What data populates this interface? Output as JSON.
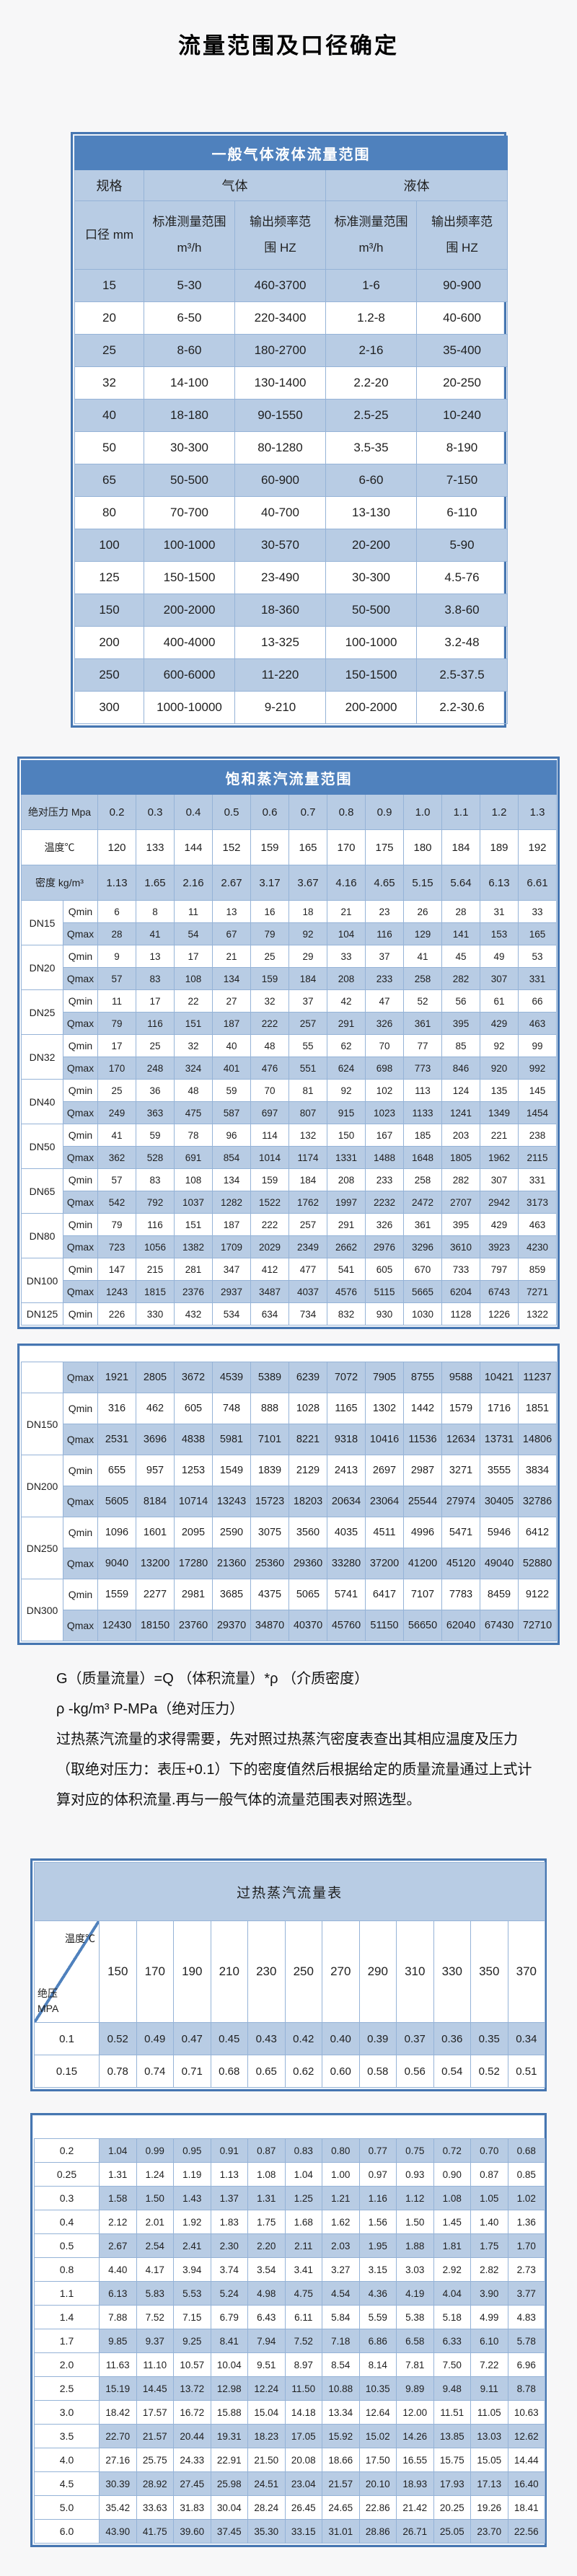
{
  "page": {
    "title": "流量范围及口径确定"
  },
  "colors": {
    "accent": "#4f81bd",
    "stripe": "#b8cce4",
    "frame": "#4676b1"
  },
  "table1": {
    "title": "一般气体液体流量范围",
    "group_headers": {
      "spec": "规格",
      "gas": "气体",
      "liquid": "液体"
    },
    "columns": [
      "口径 mm",
      "标准测量范围\nm³/h",
      "输出频率范\n围 HZ",
      "标准测量范围\nm³/h",
      "输出频率范\n围 HZ"
    ],
    "rows": [
      [
        "15",
        "5-30",
        "460-3700",
        "1-6",
        "90-900"
      ],
      [
        "20",
        "6-50",
        "220-3400",
        "1.2-8",
        "40-600"
      ],
      [
        "25",
        "8-60",
        "180-2700",
        "2-16",
        "35-400"
      ],
      [
        "32",
        "14-100",
        "130-1400",
        "2.2-20",
        "20-250"
      ],
      [
        "40",
        "18-180",
        "90-1550",
        "2.5-25",
        "10-240"
      ],
      [
        "50",
        "30-300",
        "80-1280",
        "3.5-35",
        "8-190"
      ],
      [
        "65",
        "50-500",
        "60-900",
        "6-60",
        "7-150"
      ],
      [
        "80",
        "70-700",
        "40-700",
        "13-130",
        "6-110"
      ],
      [
        "100",
        "100-1000",
        "30-570",
        "20-200",
        "5-90"
      ],
      [
        "125",
        "150-1500",
        "23-490",
        "30-300",
        "4.5-76"
      ],
      [
        "150",
        "200-2000",
        "18-360",
        "50-500",
        "3.8-60"
      ],
      [
        "200",
        "400-4000",
        "13-325",
        "100-1000",
        "3.2-48"
      ],
      [
        "250",
        "600-6000",
        "11-220",
        "150-1500",
        "2.5-37.5"
      ],
      [
        "300",
        "1000-10000",
        "9-210",
        "200-2000",
        "2.2-30.6"
      ]
    ]
  },
  "table2": {
    "title": "饱和蒸汽流量范围",
    "labels": {
      "pressure": "绝对压力 Mpa",
      "temperature": "温度℃",
      "density": "密度 kg/m³",
      "qmin": "Qmin",
      "qmax": "Qmax"
    },
    "pressures": [
      "0.2",
      "0.3",
      "0.4",
      "0.5",
      "0.6",
      "0.7",
      "0.8",
      "0.9",
      "1.0",
      "1.1",
      "1.2",
      "1.3"
    ],
    "temperatures": [
      "120",
      "133",
      "144",
      "152",
      "159",
      "165",
      "170",
      "175",
      "180",
      "184",
      "189",
      "192"
    ],
    "densities": [
      "1.13",
      "1.65",
      "2.16",
      "2.67",
      "3.17",
      "3.67",
      "4.16",
      "4.65",
      "5.15",
      "5.64",
      "6.13",
      "6.61"
    ],
    "block1": [
      {
        "dn": "DN15",
        "qmin": [
          "6",
          "8",
          "11",
          "13",
          "16",
          "18",
          "21",
          "23",
          "26",
          "28",
          "31",
          "33"
        ],
        "qmax": [
          "28",
          "41",
          "54",
          "67",
          "79",
          "92",
          "104",
          "116",
          "129",
          "141",
          "153",
          "165"
        ]
      },
      {
        "dn": "DN20",
        "qmin": [
          "9",
          "13",
          "17",
          "21",
          "25",
          "29",
          "33",
          "37",
          "41",
          "45",
          "49",
          "53"
        ],
        "qmax": [
          "57",
          "83",
          "108",
          "134",
          "159",
          "184",
          "208",
          "233",
          "258",
          "282",
          "307",
          "331"
        ]
      },
      {
        "dn": "DN25",
        "qmin": [
          "11",
          "17",
          "22",
          "27",
          "32",
          "37",
          "42",
          "47",
          "52",
          "56",
          "61",
          "66"
        ],
        "qmax": [
          "79",
          "116",
          "151",
          "187",
          "222",
          "257",
          "291",
          "326",
          "361",
          "395",
          "429",
          "463"
        ]
      },
      {
        "dn": "DN32",
        "qmin": [
          "17",
          "25",
          "32",
          "40",
          "48",
          "55",
          "62",
          "70",
          "77",
          "85",
          "92",
          "99"
        ],
        "qmax": [
          "170",
          "248",
          "324",
          "401",
          "476",
          "551",
          "624",
          "698",
          "773",
          "846",
          "920",
          "992"
        ]
      },
      {
        "dn": "DN40",
        "qmin": [
          "25",
          "36",
          "48",
          "59",
          "70",
          "81",
          "92",
          "102",
          "113",
          "124",
          "135",
          "145"
        ],
        "qmax": [
          "249",
          "363",
          "475",
          "587",
          "697",
          "807",
          "915",
          "1023",
          "1133",
          "1241",
          "1349",
          "1454"
        ]
      },
      {
        "dn": "DN50",
        "qmin": [
          "41",
          "59",
          "78",
          "96",
          "114",
          "132",
          "150",
          "167",
          "185",
          "203",
          "221",
          "238"
        ],
        "qmax": [
          "362",
          "528",
          "691",
          "854",
          "1014",
          "1174",
          "1331",
          "1488",
          "1648",
          "1805",
          "1962",
          "2115"
        ]
      },
      {
        "dn": "DN65",
        "qmin": [
          "57",
          "83",
          "108",
          "134",
          "159",
          "184",
          "208",
          "233",
          "258",
          "282",
          "307",
          "331"
        ],
        "qmax": [
          "542",
          "792",
          "1037",
          "1282",
          "1522",
          "1762",
          "1997",
          "2232",
          "2472",
          "2707",
          "2942",
          "3173"
        ]
      },
      {
        "dn": "DN80",
        "qmin": [
          "79",
          "116",
          "151",
          "187",
          "222",
          "257",
          "291",
          "326",
          "361",
          "395",
          "429",
          "463"
        ],
        "qmax": [
          "723",
          "1056",
          "1382",
          "1709",
          "2029",
          "2349",
          "2662",
          "2976",
          "3296",
          "3610",
          "3923",
          "4230"
        ]
      },
      {
        "dn": "DN100",
        "qmin": [
          "147",
          "215",
          "281",
          "347",
          "412",
          "477",
          "541",
          "605",
          "670",
          "733",
          "797",
          "859"
        ],
        "qmax": [
          "1243",
          "1815",
          "2376",
          "2937",
          "3487",
          "4037",
          "4576",
          "5115",
          "5665",
          "6204",
          "6743",
          "7271"
        ]
      },
      {
        "dn": "DN125",
        "qmin": [
          "226",
          "330",
          "432",
          "534",
          "634",
          "734",
          "832",
          "930",
          "1030",
          "1128",
          "1226",
          "1322"
        ]
      }
    ],
    "block2": [
      {
        "dn": "",
        "qmax": [
          "1921",
          "2805",
          "3672",
          "4539",
          "5389",
          "6239",
          "7072",
          "7905",
          "8755",
          "9588",
          "10421",
          "11237"
        ]
      },
      {
        "dn": "DN150",
        "qmin": [
          "316",
          "462",
          "605",
          "748",
          "888",
          "1028",
          "1165",
          "1302",
          "1442",
          "1579",
          "1716",
          "1851"
        ],
        "qmax": [
          "2531",
          "3696",
          "4838",
          "5981",
          "7101",
          "8221",
          "9318",
          "10416",
          "11536",
          "12634",
          "13731",
          "14806"
        ]
      },
      {
        "dn": "DN200",
        "qmin": [
          "655",
          "957",
          "1253",
          "1549",
          "1839",
          "2129",
          "2413",
          "2697",
          "2987",
          "3271",
          "3555",
          "3834"
        ],
        "qmax": [
          "5605",
          "8184",
          "10714",
          "13243",
          "15723",
          "18203",
          "20634",
          "23064",
          "25544",
          "27974",
          "30405",
          "32786"
        ]
      },
      {
        "dn": "DN250",
        "qmin": [
          "1096",
          "1601",
          "2095",
          "2590",
          "3075",
          "3560",
          "4035",
          "4511",
          "4996",
          "5471",
          "5946",
          "6412"
        ],
        "qmax": [
          "9040",
          "13200",
          "17280",
          "21360",
          "25360",
          "29360",
          "33280",
          "37200",
          "41200",
          "45120",
          "49040",
          "52880"
        ]
      },
      {
        "dn": "DN300",
        "qmin": [
          "1559",
          "2277",
          "2981",
          "3685",
          "4375",
          "5065",
          "5741",
          "6417",
          "7107",
          "7783",
          "8459",
          "9122"
        ],
        "qmax": [
          "12430",
          "18150",
          "23760",
          "29370",
          "34870",
          "40370",
          "45760",
          "51150",
          "56650",
          "62040",
          "67430",
          "72710"
        ]
      }
    ]
  },
  "notes": {
    "formula": "G（质量流量）=Q （体积流量）*ρ （介质密度）",
    "rho": "ρ -kg/m³ P-MPa（绝对压力）",
    "paragraph": "过热蒸汽流量的求得需要，先对照过热蒸汽密度表查出其相应温度及压力（取绝对压力：表压+0.1）下的密度值然后根据给定的质量流量通过上式计算对应的体积流量.再与一般气体的流量范围表对照选型。"
  },
  "table3": {
    "title": "过热蒸汽流量表",
    "corner": {
      "top": "温度℃",
      "bottom": "绝压\nMPA"
    },
    "temperatures": [
      "150",
      "170",
      "190",
      "210",
      "230",
      "250",
      "270",
      "290",
      "310",
      "330",
      "350",
      "370"
    ],
    "block1": [
      {
        "p": "0.1",
        "v": [
          "0.52",
          "0.49",
          "0.47",
          "0.45",
          "0.43",
          "0.42",
          "0.40",
          "0.39",
          "0.37",
          "0.36",
          "0.35",
          "0.34"
        ]
      },
      {
        "p": "0.15",
        "v": [
          "0.78",
          "0.74",
          "0.71",
          "0.68",
          "0.65",
          "0.62",
          "0.60",
          "0.58",
          "0.56",
          "0.54",
          "0.52",
          "0.51"
        ]
      }
    ],
    "block2": [
      {
        "p": "0.2",
        "v": [
          "1.04",
          "0.99",
          "0.95",
          "0.91",
          "0.87",
          "0.83",
          "0.80",
          "0.77",
          "0.75",
          "0.72",
          "0.70",
          "0.68"
        ]
      },
      {
        "p": "0.25",
        "v": [
          "1.31",
          "1.24",
          "1.19",
          "1.13",
          "1.08",
          "1.04",
          "1.00",
          "0.97",
          "0.93",
          "0.90",
          "0.87",
          "0.85"
        ]
      },
      {
        "p": "0.3",
        "v": [
          "1.58",
          "1.50",
          "1.43",
          "1.37",
          "1.31",
          "1.25",
          "1.21",
          "1.16",
          "1.12",
          "1.08",
          "1.05",
          "1.02"
        ]
      },
      {
        "p": "0.4",
        "v": [
          "2.12",
          "2.01",
          "1.92",
          "1.83",
          "1.75",
          "1.68",
          "1.62",
          "1.56",
          "1.50",
          "1.45",
          "1.40",
          "1.36"
        ]
      },
      {
        "p": "0.5",
        "v": [
          "2.67",
          "2.54",
          "2.41",
          "2.30",
          "2.20",
          "2.11",
          "2.03",
          "1.95",
          "1.88",
          "1.81",
          "1.75",
          "1.70"
        ]
      },
      {
        "p": "0.8",
        "v": [
          "4.40",
          "4.17",
          "3.94",
          "3.74",
          "3.54",
          "3.41",
          "3.27",
          "3.15",
          "3.03",
          "2.92",
          "2.82",
          "2.73"
        ]
      },
      {
        "p": "1.1",
        "v": [
          "6.13",
          "5.83",
          "5.53",
          "5.24",
          "4.98",
          "4.75",
          "4.54",
          "4.36",
          "4.19",
          "4.04",
          "3.90",
          "3.77"
        ]
      },
      {
        "p": "1.4",
        "v": [
          "7.88",
          "7.52",
          "7.15",
          "6.79",
          "6.43",
          "6.11",
          "5.84",
          "5.59",
          "5.38",
          "5.18",
          "4.99",
          "4.83"
        ]
      },
      {
        "p": "1.7",
        "v": [
          "9.85",
          "9.37",
          "9.25",
          "8.41",
          "7.94",
          "7.52",
          "7.18",
          "6.86",
          "6.58",
          "6.33",
          "6.10",
          "5.78"
        ]
      },
      {
        "p": "2.0",
        "v": [
          "11.63",
          "11.10",
          "10.57",
          "10.04",
          "9.51",
          "8.97",
          "8.54",
          "8.14",
          "7.81",
          "7.50",
          "7.22",
          "6.96"
        ]
      },
      {
        "p": "2.5",
        "v": [
          "15.19",
          "14.45",
          "13.72",
          "12.98",
          "12.24",
          "11.50",
          "10.88",
          "10.35",
          "9.89",
          "9.48",
          "9.11",
          "8.78"
        ]
      },
      {
        "p": "3.0",
        "v": [
          "18.42",
          "17.57",
          "16.72",
          "15.88",
          "15.04",
          "14.18",
          "13.34",
          "12.64",
          "12.00",
          "11.51",
          "11.05",
          "10.63"
        ]
      },
      {
        "p": "3.5",
        "v": [
          "22.70",
          "21.57",
          "20.44",
          "19.31",
          "18.23",
          "17.05",
          "15.92",
          "15.02",
          "14.26",
          "13.85",
          "13.03",
          "12.62"
        ]
      },
      {
        "p": "4.0",
        "v": [
          "27.16",
          "25.75",
          "24.33",
          "22.91",
          "21.50",
          "20.08",
          "18.66",
          "17.50",
          "16.55",
          "15.75",
          "15.05",
          "14.44"
        ]
      },
      {
        "p": "4.5",
        "v": [
          "30.39",
          "28.92",
          "27.45",
          "25.98",
          "24.51",
          "23.04",
          "21.57",
          "20.10",
          "18.93",
          "17.93",
          "17.13",
          "16.40"
        ]
      },
      {
        "p": "5.0",
        "v": [
          "35.42",
          "33.63",
          "31.83",
          "30.04",
          "28.24",
          "26.45",
          "24.65",
          "22.86",
          "21.42",
          "20.25",
          "19.26",
          "18.41"
        ]
      },
      {
        "p": "6.0",
        "v": [
          "43.90",
          "41.75",
          "39.60",
          "37.45",
          "35.30",
          "33.15",
          "31.01",
          "28.86",
          "26.71",
          "25.05",
          "23.70",
          "22.56"
        ]
      }
    ]
  }
}
